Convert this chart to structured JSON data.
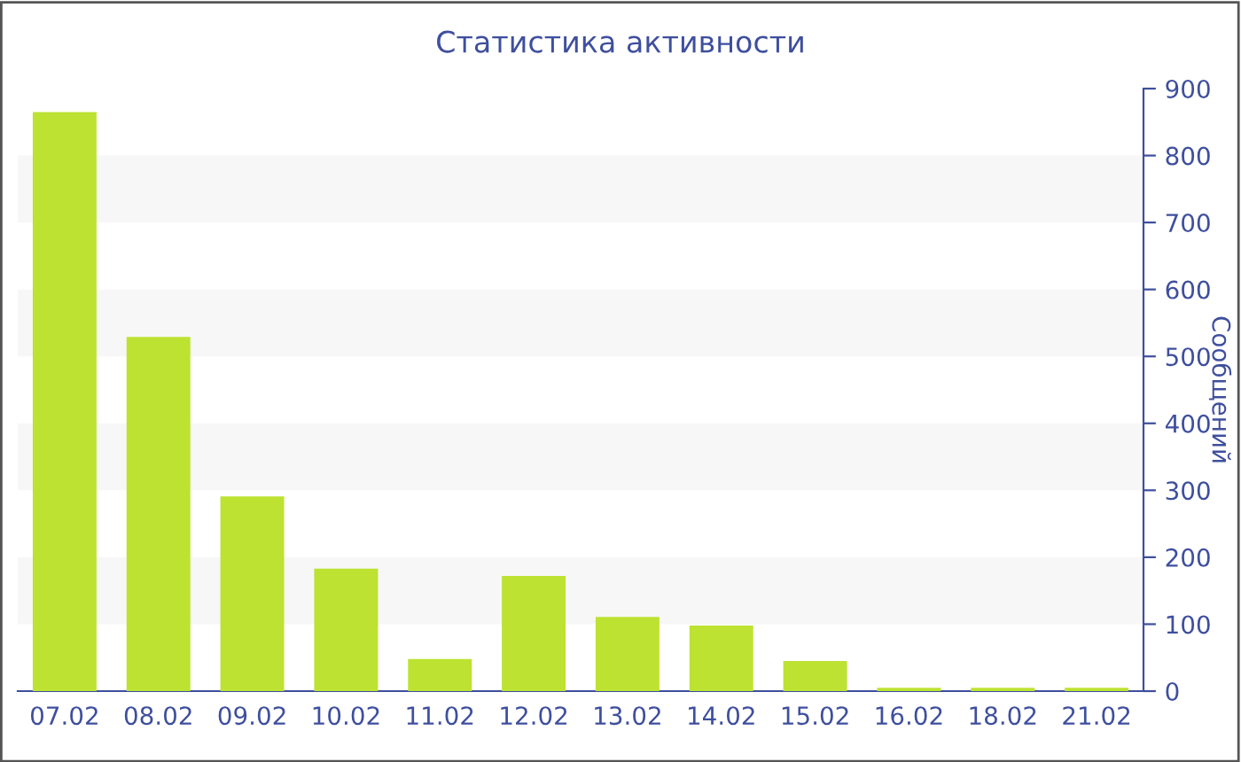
{
  "chart_data": {
    "type": "bar",
    "title": "Статистика активности",
    "ylabel": "Сообщений",
    "categories": [
      "07.02",
      "08.02",
      "09.02",
      "10.02",
      "11.02",
      "12.02",
      "13.02",
      "14.02",
      "15.02",
      "16.02",
      "18.02",
      "21.02"
    ],
    "values": [
      865,
      529,
      291,
      183,
      48,
      172,
      111,
      98,
      45,
      5,
      5,
      5
    ],
    "color": "#bde232",
    "ylim": [
      0,
      900
    ],
    "yticks": [
      0,
      100,
      200,
      300,
      400,
      500,
      600,
      700,
      800,
      900
    ],
    "grid": false,
    "bands": [
      {
        "axis": "y",
        "from": 100,
        "to": 200,
        "color": "#f7f7f7"
      },
      {
        "axis": "y",
        "from": 300,
        "to": 400,
        "color": "#f7f7f7"
      },
      {
        "axis": "y",
        "from": 500,
        "to": 600,
        "color": "#f7f7f7"
      },
      {
        "axis": "y",
        "from": 700,
        "to": 800,
        "color": "#f7f7f7"
      }
    ]
  }
}
